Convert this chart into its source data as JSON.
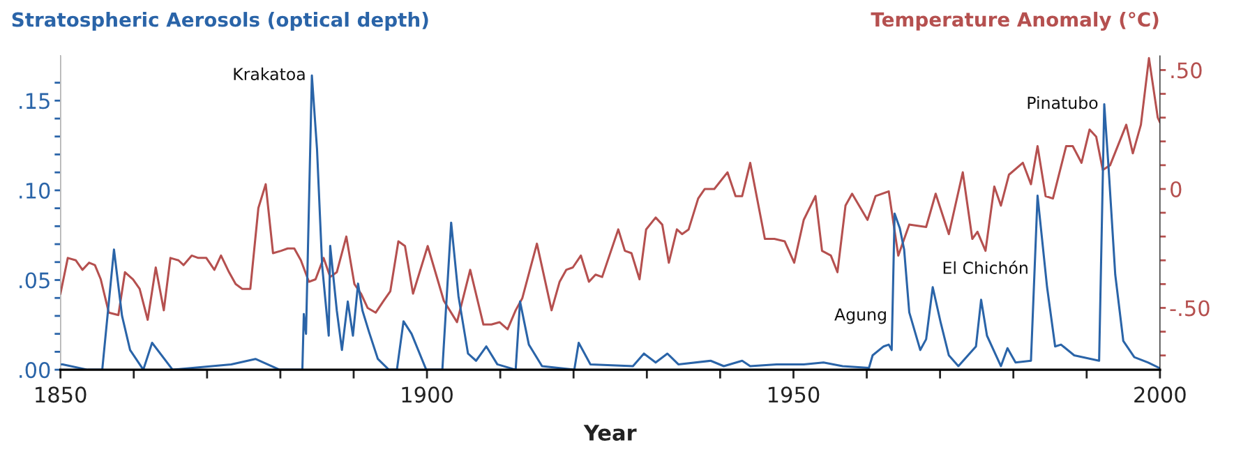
{
  "chart_data": {
    "type": "line",
    "xlabel": "Year",
    "ylabel": "Stratospheric Aerosols (optical depth)",
    "y2label": "Temperature Anomaly (°C)",
    "xlim": [
      1850,
      2000
    ],
    "xticks": [
      {
        "value": 1850,
        "label": "1850"
      },
      {
        "value": 1860,
        "label": null
      },
      {
        "value": 1870,
        "label": null
      },
      {
        "value": 1880,
        "label": null
      },
      {
        "value": 1890,
        "label": null
      },
      {
        "value": 1900,
        "label": "1900"
      },
      {
        "value": 1910,
        "label": null
      },
      {
        "value": 1920,
        "label": null
      },
      {
        "value": 1930,
        "label": null
      },
      {
        "value": 1940,
        "label": null
      },
      {
        "value": 1950,
        "label": "1950"
      },
      {
        "value": 1960,
        "label": null
      },
      {
        "value": 1970,
        "label": null
      },
      {
        "value": 1980,
        "label": null
      },
      {
        "value": 1990,
        "label": null
      },
      {
        "value": 2000,
        "label": "2000"
      }
    ],
    "ylim": [
      0,
      0.175
    ],
    "yticks": [
      {
        "value": 0,
        "label": ".00"
      },
      {
        "value": 0.01,
        "label": null
      },
      {
        "value": 0.02,
        "label": null
      },
      {
        "value": 0.03,
        "label": null
      },
      {
        "value": 0.04,
        "label": null
      },
      {
        "value": 0.05,
        "label": ".05"
      },
      {
        "value": 0.06,
        "label": null
      },
      {
        "value": 0.07,
        "label": null
      },
      {
        "value": 0.08,
        "label": null
      },
      {
        "value": 0.09,
        "label": null
      },
      {
        "value": 0.1,
        "label": ".10"
      },
      {
        "value": 0.11,
        "label": null
      },
      {
        "value": 0.12,
        "label": null
      },
      {
        "value": 0.13,
        "label": null
      },
      {
        "value": 0.14,
        "label": null
      },
      {
        "value": 0.15,
        "label": ".15"
      },
      {
        "value": 0.16,
        "label": null
      }
    ],
    "y2lim": [
      -0.76,
      0.56
    ],
    "y2ticks": [
      {
        "value": -0.7,
        "label": null
      },
      {
        "value": -0.6,
        "label": null
      },
      {
        "value": -0.5,
        "label": "-.50"
      },
      {
        "value": -0.4,
        "label": null
      },
      {
        "value": -0.3,
        "label": null
      },
      {
        "value": -0.2,
        "label": null
      },
      {
        "value": -0.1,
        "label": null
      },
      {
        "value": 0,
        "label": "0"
      },
      {
        "value": 0.1,
        "label": null
      },
      {
        "value": 0.2,
        "label": null
      },
      {
        "value": 0.3,
        "label": null
      },
      {
        "value": 0.4,
        "label": null
      },
      {
        "value": 0.5,
        "label": ".50"
      }
    ],
    "grid": false,
    "legend": false,
    "marker": "none",
    "line_style": "solid",
    "series": [
      {
        "axis": "y2",
        "color": "#b5504f",
        "x": [
          1850,
          1851,
          1852.1,
          1853,
          1853.9,
          1854.7,
          1855.5,
          1856.6,
          1857.9,
          1858.8,
          1859.9,
          1860.8,
          1861.9,
          1863,
          1864.1,
          1865,
          1866.1,
          1866.8,
          1867.9,
          1868.8,
          1869.9,
          1871,
          1871.9,
          1873,
          1873.9,
          1874.8,
          1875.9,
          1877,
          1878,
          1879,
          1880.1,
          1881,
          1881.9,
          1882.8,
          1883.9,
          1884.8,
          1885.9,
          1886.8,
          1887.7,
          1889,
          1890.1,
          1891,
          1891.9,
          1893,
          1894.1,
          1895,
          1896.1,
          1897,
          1898.1,
          1900.1,
          1902.3,
          1904.1,
          1905.9,
          1907.7,
          1908.8,
          1909.9,
          1911,
          1912.1,
          1913,
          1915,
          1917,
          1918.1,
          1919,
          1919.9,
          1921,
          1922.1,
          1923,
          1923.9,
          1926.1,
          1927,
          1927.9,
          1929,
          1929.9,
          1931.2,
          1932.1,
          1933,
          1934.1,
          1934.8,
          1935.7,
          1937,
          1937.9,
          1939.2,
          1941,
          1942.1,
          1943,
          1944.1,
          1946.1,
          1947.4,
          1948.8,
          1950.1,
          1951.4,
          1953,
          1953.9,
          1955.1,
          1956,
          1957.1,
          1958,
          1960.1,
          1961.2,
          1963,
          1964.3,
          1965.8,
          1968.1,
          1969.4,
          1971.2,
          1973.1,
          1974.4,
          1975.1,
          1976.2,
          1977.4,
          1978.3,
          1979.4,
          1981.3,
          1982.4,
          1983.3,
          1984.4,
          1985.4,
          1987.2,
          1988.1,
          1989.3,
          1990.4,
          1991.3,
          1992.2,
          1993.2,
          1995.4,
          1996.3,
          1997.4,
          1998.5,
          1999.7,
          2000
        ],
        "values": [
          -0.44,
          -0.29,
          -0.3,
          -0.34,
          -0.31,
          -0.32,
          -0.38,
          -0.52,
          -0.53,
          -0.35,
          -0.38,
          -0.42,
          -0.55,
          -0.33,
          -0.51,
          -0.29,
          -0.3,
          -0.32,
          -0.28,
          -0.29,
          -0.29,
          -0.34,
          -0.28,
          -0.35,
          -0.4,
          -0.42,
          -0.42,
          -0.08,
          0.02,
          -0.27,
          -0.26,
          -0.25,
          -0.25,
          -0.3,
          -0.39,
          -0.38,
          -0.29,
          -0.37,
          -0.35,
          -0.2,
          -0.4,
          -0.44,
          -0.5,
          -0.52,
          -0.47,
          -0.43,
          -0.22,
          -0.24,
          -0.44,
          -0.24,
          -0.47,
          -0.56,
          -0.34,
          -0.57,
          -0.57,
          -0.56,
          -0.59,
          -0.51,
          -0.46,
          -0.23,
          -0.51,
          -0.39,
          -0.34,
          -0.33,
          -0.28,
          -0.39,
          -0.36,
          -0.37,
          -0.17,
          -0.26,
          -0.27,
          -0.38,
          -0.17,
          -0.12,
          -0.15,
          -0.31,
          -0.17,
          -0.19,
          -0.17,
          -0.04,
          0.0,
          0.0,
          0.07,
          -0.03,
          -0.03,
          0.11,
          -0.21,
          -0.21,
          -0.22,
          -0.31,
          -0.13,
          -0.03,
          -0.26,
          -0.28,
          -0.35,
          -0.07,
          -0.02,
          -0.13,
          -0.03,
          -0.01,
          -0.28,
          -0.15,
          -0.16,
          -0.02,
          -0.19,
          0.07,
          -0.21,
          -0.18,
          -0.26,
          0.01,
          -0.07,
          0.06,
          0.11,
          0.02,
          0.18,
          -0.03,
          -0.04,
          0.18,
          0.18,
          0.11,
          0.25,
          0.22,
          0.08,
          0.1,
          0.27,
          0.15,
          0.27,
          0.55,
          0.3,
          0.28
        ]
      },
      {
        "color": "#2a64a8",
        "x": [
          1850,
          1850.3,
          1853.7,
          1855.7,
          1857.3,
          1858.4,
          1859.5,
          1861.3,
          1862.5,
          1865.3,
          1873.3,
          1876.6,
          1879.9,
          1883,
          1883.2,
          1883.5,
          1884.3,
          1885,
          1885.7,
          1886.6,
          1886.8,
          1887.7,
          1888.4,
          1889.2,
          1889.9,
          1890.6,
          1891.2,
          1892.1,
          1893.3,
          1894.8,
          1895.9,
          1896.8,
          1897.9,
          1899.9,
          1902.1,
          1903.3,
          1904.3,
          1905.6,
          1906.7,
          1908.1,
          1909.6,
          1912.1,
          1912.7,
          1913.9,
          1915.7,
          1920.1,
          1920.7,
          1922.3,
          1928.1,
          1929.6,
          1931.2,
          1932.8,
          1934.3,
          1938.7,
          1940.5,
          1943,
          1944.1,
          1947.7,
          1951.4,
          1954.1,
          1956.7,
          1960.3,
          1960.8,
          1962.3,
          1963,
          1963.4,
          1963.8,
          1964.5,
          1965.1,
          1965.8,
          1967.3,
          1968.1,
          1969,
          1970.1,
          1971.2,
          1972.5,
          1974.9,
          1975.6,
          1976.4,
          1978.3,
          1979.2,
          1980.3,
          1982.4,
          1983.3,
          1984.6,
          1985.7,
          1986.5,
          1988.3,
          1991.7,
          1992.4,
          1993,
          1993.9,
          1995,
          1996.5,
          1998.4,
          1999.9
        ],
        "values": [
          0.003,
          0.003,
          0,
          0,
          0.067,
          0.03,
          0.011,
          0,
          0.015,
          0,
          0.003,
          0.006,
          0,
          0,
          0.031,
          0.02,
          0.164,
          0.123,
          0.058,
          0.019,
          0.069,
          0.033,
          0.011,
          0.038,
          0.019,
          0.048,
          0.033,
          0.021,
          0.006,
          0,
          0,
          0.027,
          0.02,
          0,
          0,
          0.082,
          0.041,
          0.009,
          0.005,
          0.013,
          0.003,
          0,
          0.038,
          0.014,
          0.002,
          0,
          0.015,
          0.003,
          0.002,
          0.009,
          0.004,
          0.009,
          0.003,
          0.005,
          0.002,
          0.005,
          0.002,
          0.003,
          0.003,
          0.004,
          0.002,
          0.001,
          0.008,
          0.013,
          0.014,
          0.011,
          0.087,
          0.079,
          0.067,
          0.032,
          0.011,
          0.017,
          0.046,
          0.026,
          0.008,
          0.002,
          0.013,
          0.039,
          0.019,
          0.002,
          0.012,
          0.004,
          0.005,
          0.097,
          0.046,
          0.013,
          0.014,
          0.008,
          0.005,
          0.148,
          0.112,
          0.053,
          0.016,
          0.007,
          0.004,
          0.001
        ]
      }
    ],
    "annotations": [
      {
        "text": "Krakatoa",
        "x": 1884.3,
        "y": 0.164
      },
      {
        "text": "Agung",
        "x": 1963.6,
        "y": 0.03
      },
      {
        "text": "El Chichón",
        "x": 1982.9,
        "y": 0.056
      },
      {
        "text": "Pinatubo",
        "x": 1992.4,
        "y": 0.148
      }
    ]
  }
}
